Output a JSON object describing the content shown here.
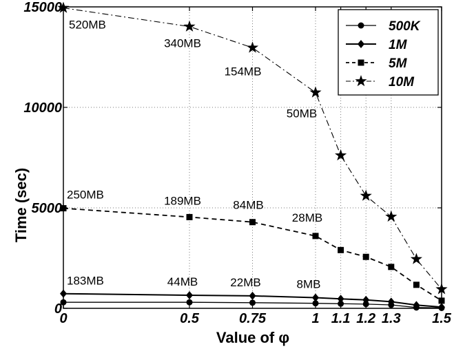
{
  "chart_data": {
    "type": "line",
    "xlabel": "Value of φ",
    "ylabel": "Time (sec)",
    "x": [
      0,
      0.5,
      0.75,
      1,
      1.1,
      1.2,
      1.3,
      1.4,
      1.5
    ],
    "x_tick_labels": [
      "0",
      "0.5",
      "0.75",
      "1",
      "1.1",
      "1.2",
      "1.3",
      "1.5"
    ],
    "x_tick_positions": [
      0,
      0.5,
      0.75,
      1,
      1.1,
      1.2,
      1.3,
      1.5
    ],
    "y_tick_labels": [
      "0",
      "5000",
      "10000",
      "15000"
    ],
    "y_tick_values": [
      0,
      5000,
      10000,
      15000
    ],
    "xlim": [
      0,
      1.5
    ],
    "ylim": [
      0,
      15000
    ],
    "grid": true,
    "legend_position": "top-right",
    "series": [
      {
        "name": "500K",
        "marker": "circle",
        "line": "solid",
        "values": [
          300,
          300,
          280,
          250,
          230,
          210,
          170,
          40,
          20
        ]
      },
      {
        "name": "1M",
        "marker": "diamond",
        "line": "solid",
        "values": [
          730,
          650,
          620,
          530,
          470,
          420,
          330,
          160,
          60
        ]
      },
      {
        "name": "5M",
        "marker": "square",
        "line": "dashed",
        "values": [
          4980,
          4540,
          4290,
          3600,
          2900,
          2560,
          2060,
          1170,
          380
        ]
      },
      {
        "name": "10M",
        "marker": "star",
        "line": "dashdot",
        "values": [
          14950,
          14020,
          12970,
          10740,
          7610,
          5600,
          4560,
          2450,
          950
        ]
      }
    ],
    "annotations": [
      {
        "text": "520MB",
        "x": 0,
        "y": 14950
      },
      {
        "text": "340MB",
        "x": 0.5,
        "y": 14020
      },
      {
        "text": "154MB",
        "x": 0.75,
        "y": 12970
      },
      {
        "text": "50MB",
        "x": 1,
        "y": 10740
      },
      {
        "text": "250MB",
        "x": 0,
        "y": 4980
      },
      {
        "text": "189MB",
        "x": 0.5,
        "y": 4540
      },
      {
        "text": "84MB",
        "x": 0.75,
        "y": 4290
      },
      {
        "text": "28MB",
        "x": 1,
        "y": 3600
      },
      {
        "text": "183MB",
        "x": 0,
        "y": 730
      },
      {
        "text": "44MB",
        "x": 0.5,
        "y": 650
      },
      {
        "text": "22MB",
        "x": 0.75,
        "y": 620
      },
      {
        "text": "8MB",
        "x": 1,
        "y": 530
      }
    ]
  }
}
